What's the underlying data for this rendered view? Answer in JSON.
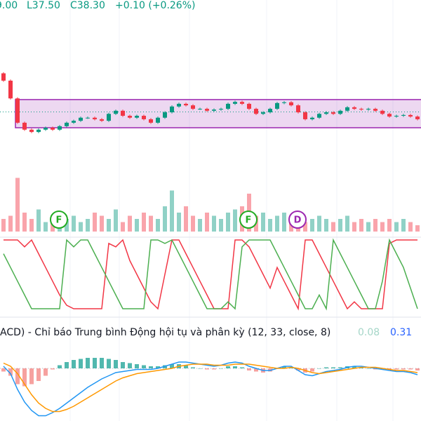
{
  "chart_data": {
    "type": "candlestick",
    "header": {
      "high_cut": "9.00",
      "low": "L37.50",
      "close": "C38.30",
      "change": "+0.10 (+0.26%)"
    },
    "ylim": [
      37.2,
      41.2
    ],
    "last_price": 38.3,
    "range_box": [
      37.89,
      38.62
    ],
    "ohlc": [
      [
        39.3,
        39.33,
        39.08,
        39.11
      ],
      [
        39.11,
        39.14,
        38.62,
        38.65
      ],
      [
        38.65,
        38.68,
        37.99,
        38.02
      ],
      [
        38.02,
        38.05,
        37.81,
        37.84
      ],
      [
        37.84,
        37.87,
        37.75,
        37.78
      ],
      [
        37.78,
        37.87,
        37.75,
        37.84
      ],
      [
        37.84,
        37.92,
        37.81,
        37.89
      ],
      [
        37.89,
        37.92,
        37.81,
        37.84
      ],
      [
        37.84,
        37.96,
        37.81,
        37.93
      ],
      [
        37.93,
        38.05,
        37.9,
        38.02
      ],
      [
        38.02,
        38.1,
        37.99,
        38.07
      ],
      [
        38.07,
        38.18,
        38.04,
        38.15
      ],
      [
        38.15,
        38.18,
        38.12,
        38.15
      ],
      [
        38.15,
        38.18,
        38.08,
        38.11
      ],
      [
        38.11,
        38.14,
        38.04,
        38.07
      ],
      [
        38.07,
        38.28,
        38.04,
        38.25
      ],
      [
        38.25,
        38.36,
        38.22,
        38.33
      ],
      [
        38.33,
        38.36,
        38.17,
        38.2
      ],
      [
        38.2,
        38.23,
        38.12,
        38.15
      ],
      [
        38.15,
        38.23,
        38.12,
        38.2
      ],
      [
        38.2,
        38.23,
        38.08,
        38.11
      ],
      [
        38.11,
        38.14,
        37.99,
        38.02
      ],
      [
        38.02,
        38.18,
        37.99,
        38.15
      ],
      [
        38.15,
        38.32,
        38.12,
        38.29
      ],
      [
        38.29,
        38.47,
        38.26,
        38.44
      ],
      [
        38.44,
        38.54,
        38.41,
        38.51
      ],
      [
        38.51,
        38.54,
        38.44,
        38.47
      ],
      [
        38.47,
        38.5,
        38.35,
        38.38
      ],
      [
        38.38,
        38.41,
        38.35,
        38.38
      ],
      [
        38.38,
        38.41,
        38.3,
        38.33
      ],
      [
        38.33,
        38.39,
        38.3,
        38.36
      ],
      [
        38.36,
        38.41,
        38.33,
        38.38
      ],
      [
        38.38,
        38.54,
        38.35,
        38.51
      ],
      [
        38.51,
        38.59,
        38.48,
        38.56
      ],
      [
        38.56,
        38.59,
        38.48,
        38.51
      ],
      [
        38.51,
        38.54,
        38.35,
        38.38
      ],
      [
        38.38,
        38.41,
        38.22,
        38.25
      ],
      [
        38.25,
        38.32,
        38.22,
        38.29
      ],
      [
        38.29,
        38.41,
        38.26,
        38.38
      ],
      [
        38.38,
        38.56,
        38.35,
        38.53
      ],
      [
        38.53,
        38.58,
        38.5,
        38.55
      ],
      [
        38.55,
        38.58,
        38.44,
        38.47
      ],
      [
        38.47,
        38.5,
        38.26,
        38.29
      ],
      [
        38.29,
        38.32,
        38.08,
        38.11
      ],
      [
        38.11,
        38.18,
        38.08,
        38.15
      ],
      [
        38.15,
        38.28,
        38.12,
        38.25
      ],
      [
        38.25,
        38.32,
        38.22,
        38.29
      ],
      [
        38.29,
        38.32,
        38.22,
        38.25
      ],
      [
        38.25,
        38.36,
        38.22,
        38.33
      ],
      [
        38.33,
        38.45,
        38.3,
        38.42
      ],
      [
        38.42,
        38.45,
        38.35,
        38.38
      ],
      [
        38.38,
        38.41,
        38.33,
        38.36
      ],
      [
        38.36,
        38.41,
        38.33,
        38.38
      ],
      [
        38.38,
        38.41,
        38.3,
        38.33
      ],
      [
        38.33,
        38.36,
        38.22,
        38.25
      ],
      [
        38.25,
        38.28,
        38.15,
        38.18
      ],
      [
        38.18,
        38.23,
        38.15,
        38.2
      ],
      [
        38.2,
        38.25,
        38.17,
        38.22
      ],
      [
        38.22,
        38.25,
        38.15,
        38.18
      ],
      [
        38.18,
        38.21,
        38.08,
        38.11
      ]
    ],
    "volume": [
      20,
      25,
      85,
      30,
      20,
      35,
      15,
      25,
      30,
      20,
      25,
      15,
      20,
      30,
      25,
      20,
      35,
      15,
      25,
      20,
      30,
      25,
      20,
      40,
      65,
      30,
      40,
      25,
      20,
      30,
      25,
      20,
      30,
      35,
      40,
      60,
      25,
      30,
      20,
      25,
      30,
      20,
      25,
      15,
      20,
      25,
      20,
      15,
      20,
      25,
      15,
      20,
      15,
      20,
      15,
      20,
      15,
      20,
      15,
      10
    ],
    "volume_lim": [
      0,
      100
    ],
    "markers": [
      "F",
      "F",
      "D"
    ],
    "oscillator": {
      "ylim": [
        0,
        100
      ],
      "series": [
        {
          "color": "#f23645",
          "values": [
            100,
            100,
            100,
            90,
            100,
            80,
            60,
            40,
            20,
            5,
            0,
            0,
            0,
            0,
            0,
            95,
            90,
            100,
            70,
            50,
            30,
            10,
            0,
            50,
            100,
            100,
            80,
            60,
            40,
            20,
            0,
            0,
            0,
            100,
            100,
            90,
            70,
            50,
            30,
            60,
            40,
            20,
            0,
            100,
            100,
            80,
            60,
            40,
            20,
            0,
            10,
            0,
            0,
            0,
            0,
            95,
            100,
            100,
            100,
            100
          ]
        },
        {
          "color": "#4caf50",
          "values": [
            80,
            60,
            40,
            20,
            0,
            0,
            0,
            0,
            0,
            100,
            90,
            100,
            100,
            80,
            60,
            40,
            20,
            0,
            0,
            0,
            0,
            100,
            100,
            95,
            100,
            80,
            60,
            40,
            20,
            0,
            0,
            0,
            10,
            0,
            90,
            100,
            100,
            100,
            100,
            80,
            60,
            40,
            20,
            0,
            0,
            20,
            0,
            100,
            80,
            60,
            40,
            20,
            0,
            0,
            40,
            100,
            80,
            60,
            30,
            0
          ]
        }
      ]
    },
    "macd": {
      "label": "ACD) - Chỉ báo Trung bình Động hội tụ và phân kỳ (12, 33, close, 8)",
      "hist_text": "0.08",
      "macd_text": "0.31",
      "ylim": [
        -0.5,
        0.3
      ],
      "histogram": [
        -0.03,
        -0.07,
        -0.15,
        -0.17,
        -0.15,
        -0.12,
        -0.07,
        -0.01,
        0.03,
        0.06,
        0.08,
        0.09,
        0.1,
        0.1,
        0.1,
        0.09,
        0.08,
        0.06,
        0.05,
        0.04,
        0.03,
        0.02,
        0.02,
        0.03,
        0.04,
        0.04,
        0.03,
        0.01,
        0,
        -0.01,
        -0.01,
        0,
        0.02,
        0.02,
        0.01,
        -0.02,
        -0.03,
        -0.04,
        -0.03,
        0,
        0.02,
        0.01,
        -0.02,
        -0.04,
        -0.03,
        0,
        0.01,
        0.01,
        0.01,
        0.02,
        0.02,
        0.01,
        0,
        -0.01,
        -0.01,
        -0.01,
        -0.01,
        -0.01,
        -0.01,
        -0.02
      ],
      "series": [
        {
          "color": "#2196f3",
          "values": [
            0.02,
            -0.05,
            -0.2,
            -0.32,
            -0.4,
            -0.45,
            -0.45,
            -0.42,
            -0.38,
            -0.33,
            -0.28,
            -0.23,
            -0.18,
            -0.14,
            -0.1,
            -0.07,
            -0.04,
            -0.03,
            -0.02,
            -0.01,
            -0.01,
            -0.01,
            0,
            0.02,
            0.04,
            0.06,
            0.06,
            0.05,
            0.04,
            0.03,
            0.02,
            0.03,
            0.05,
            0.06,
            0.05,
            0.02,
            0,
            -0.02,
            -0.02,
            0,
            0.02,
            0.02,
            -0.02,
            -0.06,
            -0.07,
            -0.05,
            -0.03,
            -0.02,
            -0.01,
            0.01,
            0.02,
            0.02,
            0.01,
            0,
            -0.01,
            -0.02,
            -0.03,
            -0.03,
            -0.04,
            -0.06
          ]
        },
        {
          "color": "#ff9800",
          "values": [
            0.05,
            0.02,
            -0.05,
            -0.15,
            -0.25,
            -0.33,
            -0.38,
            -0.41,
            -0.41,
            -0.39,
            -0.36,
            -0.32,
            -0.28,
            -0.24,
            -0.2,
            -0.16,
            -0.12,
            -0.09,
            -0.07,
            -0.05,
            -0.04,
            -0.03,
            -0.02,
            -0.01,
            0,
            0.02,
            0.03,
            0.04,
            0.04,
            0.04,
            0.03,
            0.03,
            0.03,
            0.04,
            0.04,
            0.04,
            0.03,
            0.02,
            0.01,
            0,
            0,
            0.01,
            0,
            -0.02,
            -0.04,
            -0.05,
            -0.04,
            -0.03,
            -0.02,
            -0.01,
            0,
            0.01,
            0.01,
            0.01,
            0,
            -0.01,
            -0.02,
            -0.02,
            -0.03,
            -0.04
          ]
        }
      ]
    }
  }
}
